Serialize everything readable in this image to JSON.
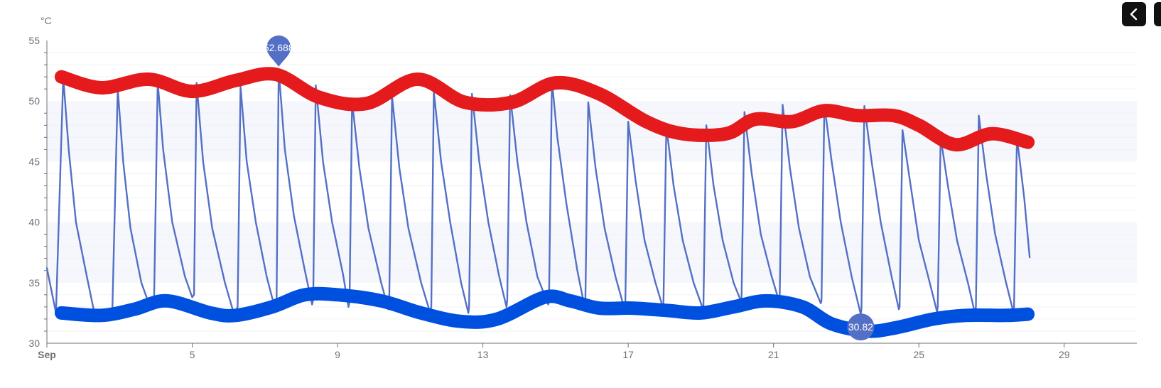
{
  "ui": {
    "prev_icon": "chevron-left-icon",
    "next_icon": "chevron-right-icon"
  },
  "chart_data": {
    "type": "line",
    "title": "",
    "ylabel": "°C",
    "xlabel": "",
    "ylim": [
      30,
      55
    ],
    "y_ticks": [
      30,
      35,
      40,
      45,
      50,
      55
    ],
    "x_range": [
      1,
      31
    ],
    "x_ticks": [
      {
        "value": 1,
        "label": "Sep",
        "bold": true
      },
      {
        "value": 5,
        "label": "5",
        "bold": false
      },
      {
        "value": 9,
        "label": "9",
        "bold": false
      },
      {
        "value": 13,
        "label": "13",
        "bold": false
      },
      {
        "value": 17,
        "label": "17",
        "bold": false
      },
      {
        "value": 21,
        "label": "21",
        "bold": false
      },
      {
        "value": 25,
        "label": "25",
        "bold": false
      },
      {
        "value": 29,
        "label": "29",
        "bold": false
      }
    ],
    "bands": [
      {
        "from": 45,
        "to": 50
      },
      {
        "from": 35,
        "to": 40
      }
    ],
    "colors": {
      "series": "#5470c6",
      "max_line": "#e41a1c",
      "min_line": "#0050e0",
      "band": "#f5f7fc",
      "axis": "#6e7079",
      "grid_minor": "#f0f1f4"
    },
    "series": [
      {
        "values": [
          [
            1.0,
            36.2
          ],
          [
            1.25,
            32.5
          ],
          [
            1.45,
            52.0
          ],
          [
            1.6,
            46.0
          ],
          [
            1.8,
            40.0
          ],
          [
            2.1,
            35.5
          ],
          [
            2.3,
            32.6
          ],
          [
            2.8,
            32.5
          ],
          [
            2.95,
            51.0
          ],
          [
            3.1,
            45.0
          ],
          [
            3.3,
            39.5
          ],
          [
            3.6,
            35.0
          ],
          [
            3.85,
            32.9
          ],
          [
            3.95,
            33.5
          ],
          [
            4.05,
            51.6
          ],
          [
            4.2,
            46.0
          ],
          [
            4.45,
            40.0
          ],
          [
            4.8,
            35.5
          ],
          [
            5.0,
            33.8
          ],
          [
            5.05,
            34.0
          ],
          [
            5.12,
            51.5
          ],
          [
            5.3,
            45.0
          ],
          [
            5.55,
            39.5
          ],
          [
            5.9,
            35.0
          ],
          [
            6.15,
            32.4
          ],
          [
            6.25,
            33.0
          ],
          [
            6.33,
            51.2
          ],
          [
            6.5,
            45.0
          ],
          [
            6.75,
            40.0
          ],
          [
            7.05,
            35.5
          ],
          [
            7.3,
            32.6
          ],
          [
            7.32,
            33.0
          ],
          [
            7.38,
            52.6
          ],
          [
            7.55,
            46.0
          ],
          [
            7.8,
            40.5
          ],
          [
            8.1,
            36.0
          ],
          [
            8.3,
            33.2
          ],
          [
            8.33,
            33.6
          ],
          [
            8.4,
            51.3
          ],
          [
            8.6,
            45.0
          ],
          [
            8.85,
            40.0
          ],
          [
            9.15,
            35.7
          ],
          [
            9.3,
            33.0
          ],
          [
            9.33,
            33.4
          ],
          [
            9.4,
            50.0
          ],
          [
            9.6,
            44.5
          ],
          [
            9.85,
            39.5
          ],
          [
            10.2,
            35.0
          ],
          [
            10.4,
            32.8
          ],
          [
            10.42,
            33.0
          ],
          [
            10.5,
            50.4
          ],
          [
            10.7,
            44.5
          ],
          [
            10.95,
            39.5
          ],
          [
            11.3,
            35.0
          ],
          [
            11.55,
            32.5
          ],
          [
            11.58,
            33.0
          ],
          [
            11.65,
            50.8
          ],
          [
            11.85,
            45.0
          ],
          [
            12.1,
            40.0
          ],
          [
            12.4,
            35.0
          ],
          [
            12.6,
            32.5
          ],
          [
            12.62,
            33.0
          ],
          [
            12.7,
            50.6
          ],
          [
            12.9,
            45.0
          ],
          [
            13.15,
            40.0
          ],
          [
            13.45,
            35.5
          ],
          [
            13.65,
            33.0
          ],
          [
            13.67,
            33.5
          ],
          [
            13.75,
            50.5
          ],
          [
            13.95,
            45.0
          ],
          [
            14.2,
            40.0
          ],
          [
            14.5,
            35.5
          ],
          [
            14.8,
            33.2
          ],
          [
            14.82,
            33.5
          ],
          [
            14.9,
            51.7
          ],
          [
            15.05,
            47.0
          ],
          [
            15.3,
            41.5
          ],
          [
            15.6,
            36.0
          ],
          [
            15.8,
            33.0
          ],
          [
            15.82,
            33.2
          ],
          [
            15.9,
            49.9
          ],
          [
            16.1,
            44.5
          ],
          [
            16.35,
            39.5
          ],
          [
            16.65,
            35.5
          ],
          [
            16.9,
            32.8
          ],
          [
            16.92,
            33.2
          ],
          [
            17.0,
            48.3
          ],
          [
            17.2,
            43.5
          ],
          [
            17.45,
            38.5
          ],
          [
            17.75,
            35.0
          ],
          [
            17.95,
            33.0
          ],
          [
            17.97,
            33.2
          ],
          [
            18.05,
            47.9
          ],
          [
            18.25,
            43.0
          ],
          [
            18.5,
            38.5
          ],
          [
            18.8,
            35.0
          ],
          [
            19.05,
            32.9
          ],
          [
            19.07,
            33.0
          ],
          [
            19.15,
            48.0
          ],
          [
            19.35,
            43.0
          ],
          [
            19.6,
            38.5
          ],
          [
            19.9,
            35.0
          ],
          [
            20.1,
            33.5
          ],
          [
            20.12,
            33.8
          ],
          [
            20.2,
            49.1
          ],
          [
            20.4,
            44.0
          ],
          [
            20.65,
            39.0
          ],
          [
            20.95,
            35.5
          ],
          [
            21.15,
            33.5
          ],
          [
            21.17,
            33.8
          ],
          [
            21.25,
            49.7
          ],
          [
            21.45,
            44.5
          ],
          [
            21.7,
            39.5
          ],
          [
            22.0,
            35.5
          ],
          [
            22.3,
            33.3
          ],
          [
            22.32,
            33.5
          ],
          [
            22.4,
            49.7
          ],
          [
            22.6,
            45.0
          ],
          [
            22.85,
            40.0
          ],
          [
            23.15,
            35.5
          ],
          [
            23.4,
            32.4
          ],
          [
            23.42,
            32.8
          ],
          [
            23.5,
            49.6
          ],
          [
            23.7,
            45.0
          ],
          [
            23.95,
            40.0
          ],
          [
            24.25,
            35.5
          ],
          [
            24.45,
            32.8
          ],
          [
            24.47,
            33.0
          ],
          [
            24.55,
            47.6
          ],
          [
            24.75,
            43.5
          ],
          [
            25.0,
            38.5
          ],
          [
            25.3,
            35.0
          ],
          [
            25.5,
            32.6
          ],
          [
            25.52,
            33.0
          ],
          [
            25.6,
            47.0
          ],
          [
            25.8,
            43.0
          ],
          [
            26.05,
            38.5
          ],
          [
            26.35,
            35.0
          ],
          [
            26.55,
            32.4
          ],
          [
            26.57,
            33.0
          ],
          [
            26.65,
            48.8
          ],
          [
            26.85,
            44.0
          ],
          [
            27.1,
            39.0
          ],
          [
            27.4,
            35.0
          ],
          [
            27.6,
            32.6
          ],
          [
            27.62,
            33.0
          ],
          [
            27.7,
            47.0
          ],
          [
            27.9,
            42.0
          ],
          [
            28.05,
            37.1
          ]
        ]
      },
      {
        "values": [
          [
            1.4,
            52.0
          ],
          [
            2.5,
            51.1
          ],
          [
            3.8,
            51.8
          ],
          [
            5.0,
            50.8
          ],
          [
            6.2,
            51.7
          ],
          [
            7.3,
            52.2
          ],
          [
            8.5,
            50.3
          ],
          [
            9.8,
            49.8
          ],
          [
            11.2,
            51.8
          ],
          [
            12.5,
            49.9
          ],
          [
            13.8,
            49.9
          ],
          [
            15.0,
            51.5
          ],
          [
            16.2,
            50.6
          ],
          [
            17.5,
            48.3
          ],
          [
            18.5,
            47.3
          ],
          [
            19.7,
            47.3
          ],
          [
            20.5,
            48.5
          ],
          [
            21.5,
            48.3
          ],
          [
            22.4,
            49.2
          ],
          [
            23.3,
            48.8
          ],
          [
            24.3,
            48.8
          ],
          [
            25.0,
            48.0
          ],
          [
            26.0,
            46.4
          ],
          [
            27.0,
            47.3
          ],
          [
            28.0,
            46.6
          ]
        ]
      },
      {
        "values": [
          [
            1.4,
            32.5
          ],
          [
            2.5,
            32.3
          ],
          [
            3.4,
            32.8
          ],
          [
            4.3,
            33.5
          ],
          [
            5.5,
            32.5
          ],
          [
            6.2,
            32.3
          ],
          [
            7.2,
            33.0
          ],
          [
            8.1,
            34.0
          ],
          [
            9.0,
            34.0
          ],
          [
            10.2,
            33.5
          ],
          [
            11.3,
            32.5
          ],
          [
            12.4,
            31.8
          ],
          [
            13.4,
            32.0
          ],
          [
            14.7,
            33.8
          ],
          [
            15.4,
            33.5
          ],
          [
            16.2,
            32.9
          ],
          [
            17.1,
            32.9
          ],
          [
            18.1,
            32.7
          ],
          [
            19.0,
            32.5
          ],
          [
            19.9,
            33.0
          ],
          [
            20.8,
            33.5
          ],
          [
            21.8,
            33.0
          ],
          [
            22.6,
            31.6
          ],
          [
            23.6,
            31.0
          ],
          [
            24.4,
            31.3
          ],
          [
            25.4,
            32.0
          ],
          [
            26.3,
            32.3
          ],
          [
            27.4,
            32.3
          ],
          [
            28.0,
            32.4
          ]
        ]
      }
    ],
    "markers": [
      {
        "type": "max",
        "x": 7.38,
        "y": 52.6,
        "label": "52.688"
      },
      {
        "type": "min",
        "x": 23.4,
        "y": 32.4,
        "label": "30.82"
      }
    ]
  }
}
